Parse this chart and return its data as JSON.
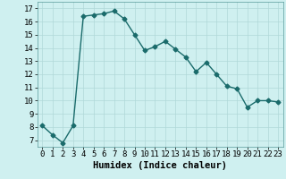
{
  "x": [
    0,
    1,
    2,
    3,
    4,
    5,
    6,
    7,
    8,
    9,
    10,
    11,
    12,
    13,
    14,
    15,
    16,
    17,
    18,
    19,
    20,
    21,
    22,
    23
  ],
  "y": [
    8.1,
    7.4,
    6.8,
    8.1,
    16.4,
    16.5,
    16.6,
    16.8,
    16.2,
    15.0,
    13.8,
    14.1,
    14.5,
    13.9,
    13.3,
    12.2,
    12.9,
    12.0,
    11.1,
    10.9,
    9.5,
    10.0,
    10.0,
    9.9
  ],
  "line_color": "#1a6b6b",
  "marker": "D",
  "markersize": 2.5,
  "linewidth": 1.0,
  "xlabel": "Humidex (Indice chaleur)",
  "xlim": [
    -0.5,
    23.5
  ],
  "ylim": [
    6.5,
    17.5
  ],
  "yticks": [
    7,
    8,
    9,
    10,
    11,
    12,
    13,
    14,
    15,
    16,
    17
  ],
  "xticks": [
    0,
    1,
    2,
    3,
    4,
    5,
    6,
    7,
    8,
    9,
    10,
    11,
    12,
    13,
    14,
    15,
    16,
    17,
    18,
    19,
    20,
    21,
    22,
    23
  ],
  "bg_color": "#cff0f0",
  "grid_color": "#b0d8d8",
  "xlabel_fontsize": 7.5,
  "tick_fontsize": 6.5
}
